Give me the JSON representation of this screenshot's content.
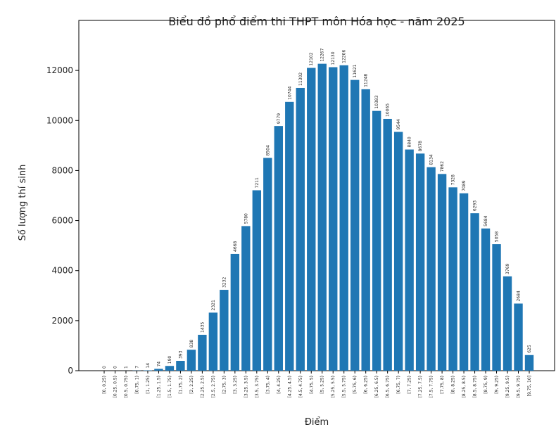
{
  "chart_data": {
    "type": "bar",
    "title": "Biểu đồ phổ điểm thi THPT môn Hóa học - năm 2025",
    "x_label": "Điểm",
    "y_label": "Số lượng thí sinh",
    "color": "#1f77b4",
    "categories": [
      "[0, 0.25)",
      "[0.25, 0.5)",
      "[0.5, 0.75)",
      "[0.75, 1)",
      "[1, 1.25)",
      "[1.25, 1.5)",
      "[1.5, 1.75)",
      "[1.75, 2)",
      "[2, 2.25)",
      "[2.25, 2.5)",
      "[2.5, 2.75)",
      "[2.75, 3)",
      "[3, 3.25)",
      "[3.25, 3.5)",
      "[3.5, 3.75)",
      "[3.75, 4)",
      "[4, 4.25)",
      "[4.25, 4.5)",
      "[4.5, 4.75)",
      "[4.75, 5)",
      "[5, 5.25)",
      "[5.25, 5.5)",
      "[5.5, 5.75)",
      "[5.75, 6)",
      "[6, 6.25)",
      "[6.25, 6.5)",
      "[6.5, 6.75)",
      "[6.75, 7)",
      "[7, 7.25)",
      "[7.25, 7.5)",
      "[7.5, 7.75)",
      "[7.75, 8)",
      "[8, 8.25)",
      "[8.25, 8.5)",
      "[8.5, 8.75)",
      "[8.75, 9)",
      "[9, 9.25)",
      "[9.25, 9.5)",
      "[9.5, 9.75)",
      "[9.75, 10]"
    ],
    "values": [
      0,
      0,
      1,
      7,
      14,
      74,
      190,
      393,
      838,
      1435,
      2321,
      3232,
      4668,
      5780,
      7211,
      8504,
      9779,
      10744,
      11302,
      12102,
      12267,
      12130,
      12206,
      11621,
      11248,
      10383,
      10065,
      9544,
      8840,
      8678,
      8134,
      7862,
      7328,
      7089,
      6293,
      5684,
      5058,
      3769,
      2684,
      625
    ],
    "ylim": [
      0,
      14000
    ],
    "yticks": [
      0,
      2000,
      4000,
      6000,
      8000,
      10000,
      12000
    ]
  }
}
